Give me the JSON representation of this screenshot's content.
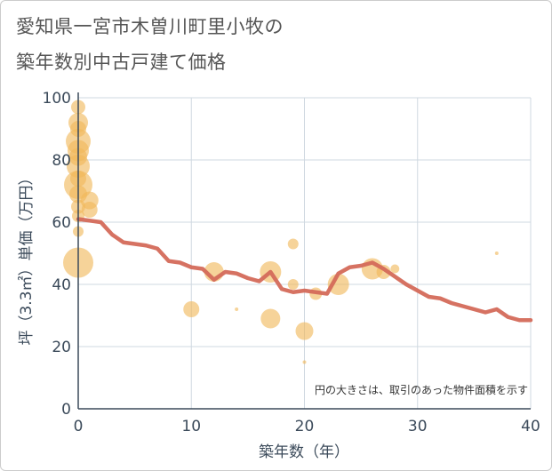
{
  "title": {
    "line1": "愛知県一宮市木曽川町里小牧の",
    "line2": "築年数別中古戸建て価格"
  },
  "chart_data": {
    "type": "scatter",
    "xlabel": "築年数（年）",
    "ylabel": "坪（3.3㎡）単価（万円）",
    "xlim": [
      0,
      40
    ],
    "ylim": [
      0,
      100
    ],
    "xticks": [
      0,
      10,
      20,
      30,
      40
    ],
    "yticks": [
      0,
      20,
      40,
      60,
      80,
      100
    ],
    "grid": true,
    "note": "円の大きさは、取引のあった物件面積を示す",
    "colors": {
      "bubble": "#f0b85a",
      "trend": "#d46a5a",
      "grid": "#cfd8e0",
      "axis": "#3b4a5a"
    },
    "points": [
      {
        "x": 0,
        "y": 97,
        "r": 8
      },
      {
        "x": 0,
        "y": 92,
        "r": 11
      },
      {
        "x": 0,
        "y": 90,
        "r": 9
      },
      {
        "x": 0,
        "y": 86,
        "r": 14
      },
      {
        "x": 0,
        "y": 83,
        "r": 12
      },
      {
        "x": 0,
        "y": 81,
        "r": 10
      },
      {
        "x": 0,
        "y": 78,
        "r": 13
      },
      {
        "x": 0,
        "y": 74,
        "r": 9
      },
      {
        "x": 0,
        "y": 72,
        "r": 16
      },
      {
        "x": 0,
        "y": 69,
        "r": 10
      },
      {
        "x": 1,
        "y": 67,
        "r": 10
      },
      {
        "x": 0,
        "y": 65,
        "r": 8
      },
      {
        "x": 1,
        "y": 64,
        "r": 9
      },
      {
        "x": 0,
        "y": 62,
        "r": 7
      },
      {
        "x": 0,
        "y": 57,
        "r": 6
      },
      {
        "x": 0,
        "y": 47,
        "r": 17
      },
      {
        "x": 10,
        "y": 32,
        "r": 9
      },
      {
        "x": 12,
        "y": 44,
        "r": 11
      },
      {
        "x": 14,
        "y": 32,
        "r": 2
      },
      {
        "x": 17,
        "y": 44,
        "r": 12
      },
      {
        "x": 17,
        "y": 29,
        "r": 11
      },
      {
        "x": 19,
        "y": 53,
        "r": 6
      },
      {
        "x": 19,
        "y": 40,
        "r": 6
      },
      {
        "x": 20,
        "y": 25,
        "r": 10
      },
      {
        "x": 20,
        "y": 15,
        "r": 2
      },
      {
        "x": 21,
        "y": 37,
        "r": 7
      },
      {
        "x": 23,
        "y": 40,
        "r": 12
      },
      {
        "x": 26,
        "y": 45,
        "r": 12
      },
      {
        "x": 27,
        "y": 44,
        "r": 8
      },
      {
        "x": 28,
        "y": 45,
        "r": 5
      },
      {
        "x": 37,
        "y": 50,
        "r": 2
      }
    ],
    "trend": {
      "x": [
        0,
        1,
        2,
        3,
        4,
        5,
        6,
        7,
        8,
        9,
        10,
        11,
        12,
        13,
        14,
        15,
        16,
        17,
        18,
        19,
        20,
        21,
        22,
        23,
        24,
        25,
        26,
        27,
        28,
        29,
        30,
        31,
        32,
        33,
        34,
        35,
        36,
        37,
        38,
        39,
        40
      ],
      "y": [
        61,
        60.5,
        60,
        56,
        53.5,
        53,
        52.5,
        51.5,
        47.5,
        47,
        45.5,
        45,
        41.5,
        44,
        43.5,
        42,
        41,
        44,
        38.5,
        37.5,
        38,
        37.5,
        37,
        43.5,
        45.5,
        46,
        47,
        45,
        42.5,
        40,
        38,
        36,
        35.5,
        34,
        33,
        32,
        31,
        32,
        29.5,
        28.5,
        28.5
      ]
    }
  }
}
